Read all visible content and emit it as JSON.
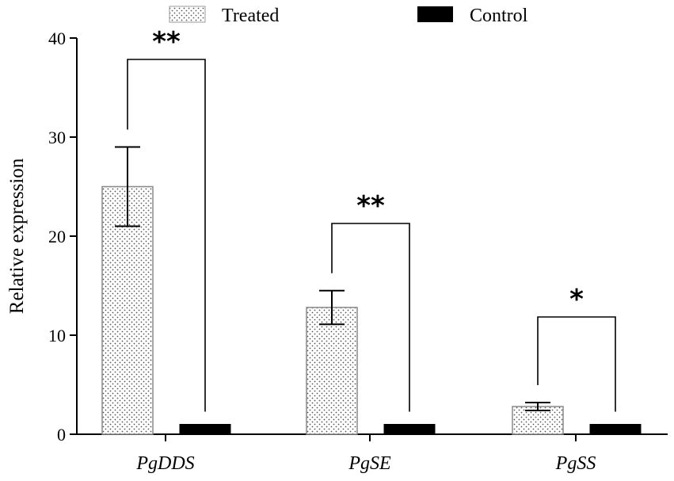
{
  "chart_data": {
    "type": "bar",
    "categories": [
      "PgDDS",
      "PgSE",
      "PgSS"
    ],
    "series": [
      {
        "name": "Treated",
        "values": [
          25.0,
          12.8,
          2.8
        ],
        "error": [
          4.0,
          1.7,
          0.4
        ],
        "color": "#ffffff",
        "pattern": "dots"
      },
      {
        "name": "Control",
        "values": [
          1.0,
          1.0,
          1.0
        ],
        "error": [
          0,
          0,
          0
        ],
        "color": "#000000"
      }
    ],
    "significance": [
      "**",
      "**",
      "*"
    ],
    "ylabel": "Relative expression",
    "xlabel": "",
    "ylim": [
      0,
      40
    ],
    "yticks": [
      0,
      10,
      20,
      30,
      40
    ],
    "legend": "top",
    "grid": false
  }
}
